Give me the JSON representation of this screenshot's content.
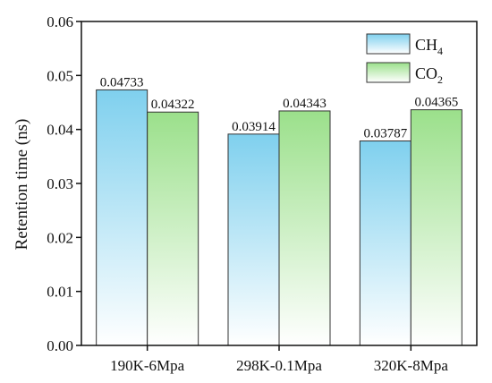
{
  "chart_data": {
    "type": "bar",
    "categories": [
      "190K-6Mpa",
      "298K-0.1Mpa",
      "320K-8Mpa"
    ],
    "series": [
      {
        "name": "CH4",
        "label_main": "CH",
        "label_sub": "4",
        "values": [
          0.04733,
          0.03914,
          0.03787
        ],
        "value_labels": [
          "0.04733",
          "0.03914",
          "0.03787"
        ],
        "color": "#7fd0ee"
      },
      {
        "name": "CO2",
        "label_main": "CO",
        "label_sub": "2",
        "values": [
          0.04322,
          0.04343,
          0.04365
        ],
        "value_labels": [
          "0.04322",
          "0.04343",
          "0.04365"
        ],
        "color": "#9be08b"
      }
    ],
    "ylabel": "Retention time (ns)",
    "xlabel": "",
    "ylim": [
      0,
      0.06
    ],
    "yticks": [
      "0.00",
      "0.01",
      "0.02",
      "0.03",
      "0.04",
      "0.05",
      "0.06"
    ],
    "legend_position": "top-right",
    "grid": false
  }
}
